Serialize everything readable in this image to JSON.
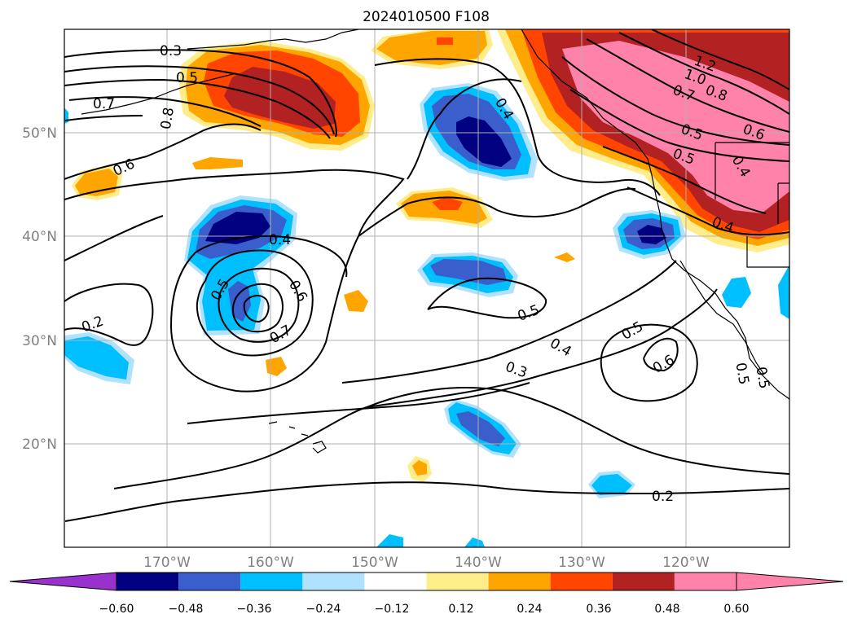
{
  "title": "2024010500 F108",
  "lat_labels": [
    "50°N",
    "40°N",
    "30°N",
    "20°N"
  ],
  "lon_labels": [
    "170°W",
    "160°W",
    "150°W",
    "140°W",
    "130°W",
    "120°W"
  ],
  "colorbar": {
    "ticks": [
      "−0.60",
      "−0.48",
      "−0.36",
      "−0.24",
      "−0.12",
      "0.12",
      "0.24",
      "0.36",
      "0.48",
      "0.60"
    ],
    "colors": {
      "below_min": "#9932cc",
      "bins": [
        "#000080",
        "#3a5fcd",
        "#00bfff",
        "#b0e2ff",
        "#ffffff",
        "#ffec8b",
        "#ffa500",
        "#ff4500",
        "#b22222",
        "#ff82ab"
      ],
      "above_max": "#ff82ab"
    }
  },
  "contour_labels": {
    "c1": "0.3",
    "c2": "0.5",
    "c3": "0.7",
    "c4": "0.8",
    "c5": "0.6",
    "c6": "0.4",
    "c7": "0.5",
    "c8": "0.6",
    "c9": "0.7",
    "c10": "0.2",
    "c11": "0.4",
    "c12": "0.5",
    "c13": "0.4",
    "c14": "0.3",
    "c15": "0.5",
    "c16": "0.6",
    "c17": "0.2",
    "c18": "1.2",
    "c19": "1.0",
    "c20": "0.7",
    "c21": "0.8",
    "c22": "0.5",
    "c23": "0.6",
    "c24": "0.5",
    "c25": "0.4",
    "c26": "0.4",
    "c27": "0.5",
    "c28": "0.5"
  }
}
